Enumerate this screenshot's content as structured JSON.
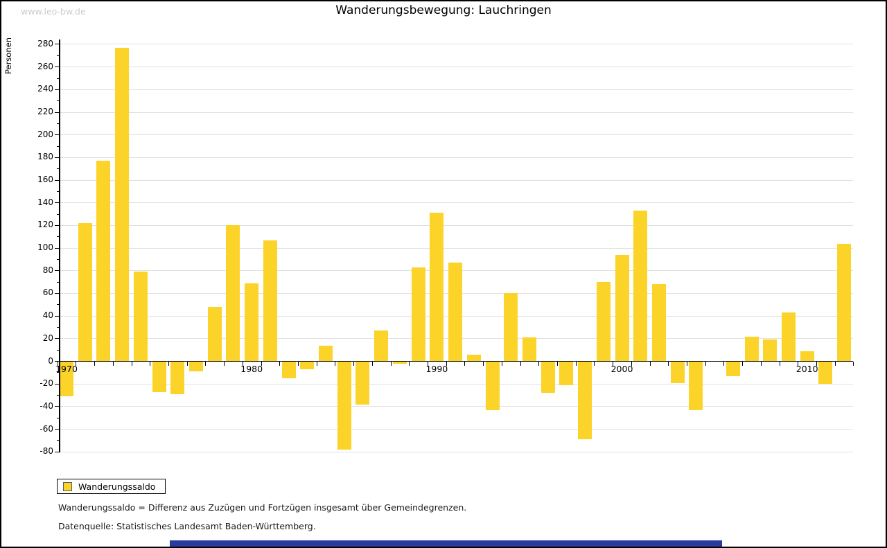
{
  "watermark": "www.leo-bw.de",
  "header": {
    "title": "Wanderungsbewegung: Lauchringen"
  },
  "legend": {
    "label": "Wanderungssaldo"
  },
  "footnotes": [
    "Wanderungssaldo = Differenz aus Zuzügen und Fortzügen insgesamt über Gemeindegrenzen.",
    "Datenquelle: Statistisches Landesamt Baden-Württemberg."
  ],
  "chart_data": {
    "type": "bar",
    "title": "Wanderungsbewegung: Lauchringen",
    "xlabel": "",
    "ylabel": "Personen",
    "ylim": [
      -80,
      280
    ],
    "ytick_step": 20,
    "ytick_minor_step": 10,
    "grid": true,
    "legend_position": "bottom-left",
    "series_name": "Wanderungssaldo",
    "bar_color": "#fcd329",
    "labeled_years": [
      1970,
      1980,
      1990,
      2000,
      2010
    ],
    "categories": [
      1970,
      1971,
      1972,
      1973,
      1974,
      1975,
      1976,
      1977,
      1978,
      1979,
      1980,
      1981,
      1982,
      1983,
      1984,
      1985,
      1986,
      1987,
      1988,
      1989,
      1990,
      1991,
      1992,
      1993,
      1994,
      1995,
      1996,
      1997,
      1998,
      1999,
      2000,
      2001,
      2002,
      2003,
      2004,
      2005,
      2006,
      2007,
      2008,
      2009,
      2010,
      2011,
      2012
    ],
    "values": [
      -31,
      122,
      177,
      277,
      79,
      -27,
      -29,
      -9,
      48,
      120,
      69,
      107,
      -15,
      -7,
      14,
      -78,
      -38,
      27,
      -2,
      83,
      131,
      87,
      6,
      -43,
      60,
      21,
      -28,
      -21,
      -69,
      70,
      94,
      133,
      68,
      -19,
      -43,
      0,
      -13,
      22,
      19,
      43,
      9,
      -20,
      104
    ]
  }
}
